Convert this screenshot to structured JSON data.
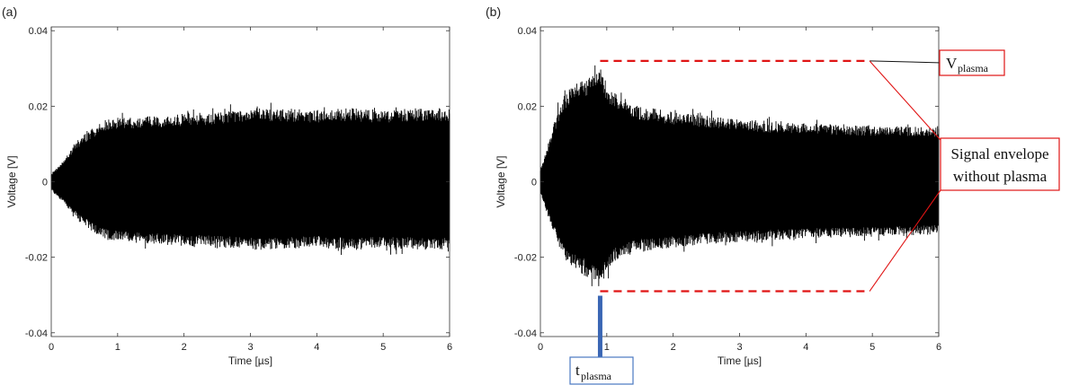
{
  "chart_data": [
    {
      "panel_label": "(a)",
      "type": "line",
      "xlabel": "Time [µs]",
      "ylabel": "Voltage [V]",
      "xlim": [
        0,
        6
      ],
      "ylim": [
        -0.041,
        0.041
      ],
      "xticks": [
        0,
        1,
        2,
        3,
        4,
        5,
        6
      ],
      "yticks": [
        -0.04,
        -0.02,
        0,
        0.02,
        0.04
      ],
      "xtick_labels": [
        "0",
        "1",
        "2",
        "3",
        "4",
        "5",
        "6"
      ],
      "ytick_labels": [
        "-0.04",
        "-0.02",
        "0",
        "0.02",
        "0.04"
      ],
      "grid": false,
      "series_color": "#000000",
      "envelope": {
        "t": [
          0,
          0.2,
          0.4,
          0.6,
          0.8,
          1.0,
          1.5,
          2.0,
          2.5,
          3.0,
          3.5,
          4.0,
          4.5,
          5.0,
          5.5,
          6.0
        ],
        "upper": [
          0.002,
          0.006,
          0.011,
          0.014,
          0.016,
          0.017,
          0.0175,
          0.018,
          0.0185,
          0.0195,
          0.0195,
          0.019,
          0.0195,
          0.019,
          0.0195,
          0.0195
        ],
        "lower": [
          -0.002,
          -0.006,
          -0.01,
          -0.013,
          -0.015,
          -0.016,
          -0.0165,
          -0.017,
          -0.0175,
          -0.018,
          -0.018,
          -0.0175,
          -0.018,
          -0.0175,
          -0.018,
          -0.018
        ]
      }
    },
    {
      "panel_label": "(b)",
      "type": "line",
      "xlabel": "Time [µs]",
      "ylabel": "Voltage [V]",
      "xlim": [
        0,
        6
      ],
      "ylim": [
        -0.041,
        0.041
      ],
      "xticks": [
        0,
        1,
        2,
        3,
        4,
        5,
        6
      ],
      "yticks": [
        -0.04,
        -0.02,
        0,
        0.02,
        0.04
      ],
      "xtick_labels": [
        "0",
        "1",
        "2",
        "3",
        "4",
        "5",
        "6"
      ],
      "ytick_labels": [
        "-0.04",
        "-0.02",
        "0",
        "0.02",
        "0.04"
      ],
      "grid": false,
      "series_color": "#000000",
      "envelope": {
        "t": [
          0,
          0.15,
          0.3,
          0.45,
          0.6,
          0.75,
          0.88,
          1.0,
          1.2,
          1.5,
          2.0,
          2.5,
          3.0,
          3.5,
          4.0,
          4.5,
          5.0,
          5.5,
          6.0
        ],
        "upper": [
          0.003,
          0.012,
          0.021,
          0.025,
          0.027,
          0.028,
          0.0315,
          0.026,
          0.022,
          0.02,
          0.0185,
          0.0175,
          0.0165,
          0.0158,
          0.0155,
          0.015,
          0.0148,
          0.0147,
          0.0145
        ],
        "lower": [
          -0.003,
          -0.011,
          -0.018,
          -0.022,
          -0.024,
          -0.026,
          -0.0285,
          -0.024,
          -0.02,
          -0.0185,
          -0.0175,
          -0.0165,
          -0.016,
          -0.0155,
          -0.015,
          -0.0148,
          -0.0145,
          -0.0142,
          -0.014
        ]
      },
      "annotations": {
        "v_plasma_label": "V",
        "v_plasma_sub": "plasma",
        "v_plasma_level": 0.032,
        "v_plasma_lower_level": -0.029,
        "v_plasma_line_end": 5.5,
        "signal_envelope_line1": "Signal envelope",
        "signal_envelope_line2": "without plasma",
        "t_plasma_label": "t",
        "t_plasma_sub": "plasma",
        "t_plasma_time": 0.9,
        "dashed_color": "#e01414",
        "box_color": "#e01414",
        "t_box_color": "#4a78c2",
        "t_bar_color": "#3a66b4"
      }
    }
  ]
}
